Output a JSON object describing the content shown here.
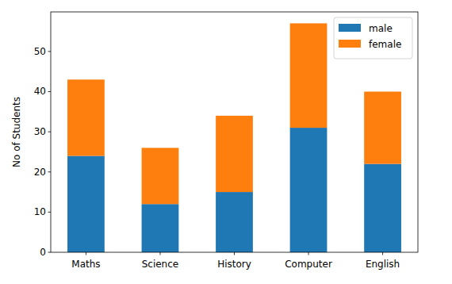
{
  "chart_data": {
    "type": "bar",
    "stacked": true,
    "y_label": "No of Students",
    "categories": [
      "Maths",
      "Science",
      "History",
      "Computer",
      "English"
    ],
    "series": [
      {
        "name": "male",
        "color": "#1f77b4",
        "values": [
          24,
          12,
          15,
          31,
          22
        ]
      },
      {
        "name": "female",
        "color": "#ff7f0e",
        "values": [
          19,
          14,
          19,
          26,
          18
        ]
      }
    ],
    "ylim": [
      0,
      59.85
    ],
    "yticks": [
      0,
      10,
      20,
      30,
      40,
      50
    ],
    "grid": false,
    "legend": "upper-right"
  }
}
